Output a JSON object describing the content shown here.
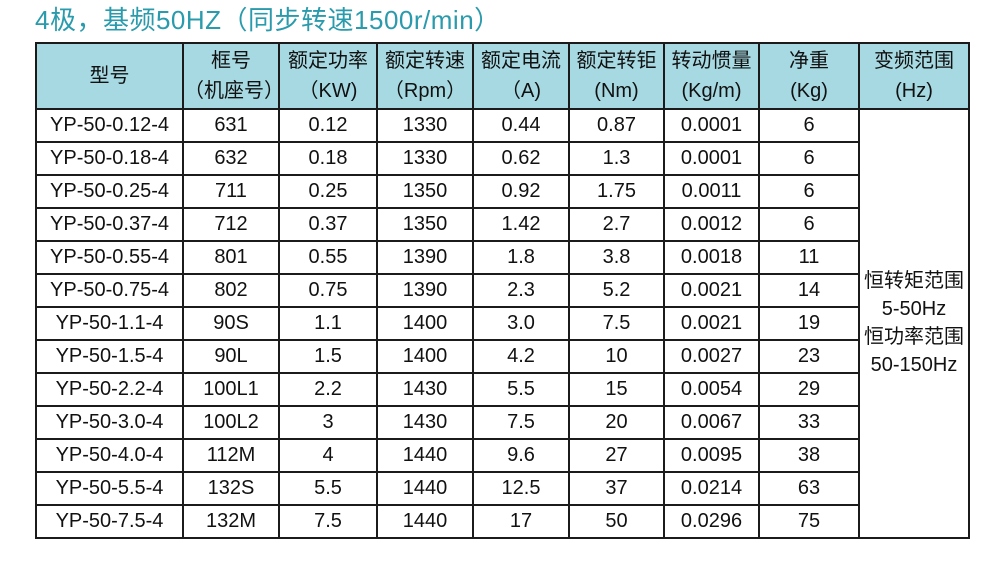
{
  "title": "4极，基频50HZ（同步转速1500r/min）",
  "colors": {
    "title": "#2a9bac",
    "header_bg": "#a7d9e2",
    "border": "#1b1b1b",
    "text": "#111111"
  },
  "table": {
    "columns": [
      {
        "key": "model",
        "label": "型号",
        "unit": ""
      },
      {
        "key": "frame",
        "label": "框号",
        "unit": "（机座号）"
      },
      {
        "key": "power",
        "label": "额定功率",
        "unit": "（KW)"
      },
      {
        "key": "speed",
        "label": "额定转速",
        "unit": "（Rpm）"
      },
      {
        "key": "current",
        "label": "额定电流",
        "unit": "（A)"
      },
      {
        "key": "torque",
        "label": "额定转钜",
        "unit": "(Nm)"
      },
      {
        "key": "inertia",
        "label": "转动惯量",
        "unit": "(Kg/m)"
      },
      {
        "key": "weight",
        "label": "净重",
        "unit": "(Kg)"
      },
      {
        "key": "freq_range",
        "label": "变频范围",
        "unit": "(Hz)"
      }
    ],
    "rows": [
      [
        "YP-50-0.12-4",
        "631",
        "0.12",
        "1330",
        "0.44",
        "0.87",
        "0.0001",
        "6"
      ],
      [
        "YP-50-0.18-4",
        "632",
        "0.18",
        "1330",
        "0.62",
        "1.3",
        "0.0001",
        "6"
      ],
      [
        "YP-50-0.25-4",
        "711",
        "0.25",
        "1350",
        "0.92",
        "1.75",
        "0.0011",
        "6"
      ],
      [
        "YP-50-0.37-4",
        "712",
        "0.37",
        "1350",
        "1.42",
        "2.7",
        "0.0012",
        "6"
      ],
      [
        "YP-50-0.55-4",
        "801",
        "0.55",
        "1390",
        "1.8",
        "3.8",
        "0.0018",
        "11"
      ],
      [
        "YP-50-0.75-4",
        "802",
        "0.75",
        "1390",
        "2.3",
        "5.2",
        "0.0021",
        "14"
      ],
      [
        "YP-50-1.1-4",
        "90S",
        "1.1",
        "1400",
        "3.0",
        "7.5",
        "0.0021",
        "19"
      ],
      [
        "YP-50-1.5-4",
        "90L",
        "1.5",
        "1400",
        "4.2",
        "10",
        "0.0027",
        "23"
      ],
      [
        "YP-50-2.2-4",
        "100L1",
        "2.2",
        "1430",
        "5.5",
        "15",
        "0.0054",
        "29"
      ],
      [
        "YP-50-3.0-4",
        "100L2",
        "3",
        "1430",
        "7.5",
        "20",
        "0.0067",
        "33"
      ],
      [
        "YP-50-4.0-4",
        "112M",
        "4",
        "1440",
        "9.6",
        "27",
        "0.0095",
        "38"
      ],
      [
        "YP-50-5.5-4",
        "132S",
        "5.5",
        "1440",
        "12.5",
        "37",
        "0.0214",
        "63"
      ],
      [
        "YP-50-7.5-4",
        "132M",
        "7.5",
        "1440",
        "17",
        "50",
        "0.0296",
        "75"
      ]
    ],
    "merged_cell": {
      "lines": [
        "恒转矩范围",
        "5-50Hz",
        "恒功率范围",
        "50-150Hz"
      ]
    }
  }
}
